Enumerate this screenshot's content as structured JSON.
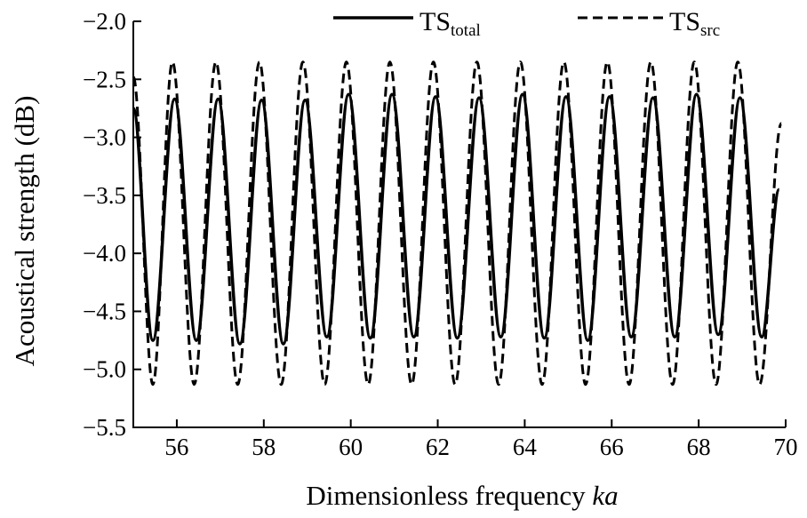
{
  "chart_data": {
    "type": "line",
    "xlabel": "Dimensionless frequency",
    "xlabel_italic": "ka",
    "ylabel": "Acoustical strength (dB)",
    "xlim": [
      55,
      70
    ],
    "ylim": [
      -5.5,
      -2.0
    ],
    "xticks": [
      56,
      58,
      60,
      62,
      64,
      66,
      68,
      70
    ],
    "xtick_labels": [
      "56",
      "58",
      "60",
      "62",
      "64",
      "66",
      "68",
      "70"
    ],
    "yticks": [
      -2.0,
      -2.5,
      -3.0,
      -3.5,
      -4.0,
      -4.5,
      -5.0,
      -5.5
    ],
    "ytick_labels": [
      "−2.0",
      "−2.5",
      "−3.0",
      "−3.5",
      "−4.0",
      "−4.5",
      "−5.0",
      "−5.5"
    ],
    "grid": false,
    "legend_position": "top-right",
    "series": [
      {
        "name_main": "TS",
        "name_sub": "total",
        "style": "solid",
        "color": "#000000",
        "x": [
          55.0,
          55.45,
          55.95,
          56.45,
          56.95,
          57.45,
          57.95,
          58.45,
          58.95,
          59.45,
          59.95,
          60.45,
          60.95,
          61.45,
          61.95,
          62.45,
          62.95,
          63.45,
          63.95,
          64.45,
          64.95,
          65.45,
          65.95,
          66.45,
          66.95,
          67.45,
          67.95,
          68.45,
          68.95,
          69.45,
          69.85
        ],
        "y": [
          -2.75,
          -4.75,
          -2.67,
          -4.75,
          -2.67,
          -4.78,
          -2.68,
          -4.78,
          -2.68,
          -4.72,
          -2.63,
          -4.73,
          -2.63,
          -4.72,
          -2.65,
          -4.73,
          -2.66,
          -4.72,
          -2.63,
          -4.73,
          -2.65,
          -4.75,
          -2.65,
          -4.72,
          -2.66,
          -4.72,
          -2.63,
          -4.7,
          -2.66,
          -4.72,
          -3.45
        ]
      },
      {
        "name_main": "TS",
        "name_sub": "src",
        "style": "dashed",
        "color": "#000000",
        "x": [
          55.0,
          55.45,
          55.9,
          56.4,
          56.9,
          57.4,
          57.9,
          58.4,
          58.9,
          59.4,
          59.9,
          60.4,
          60.9,
          61.4,
          61.9,
          62.4,
          62.9,
          63.4,
          63.9,
          64.4,
          64.9,
          65.4,
          65.9,
          66.4,
          66.9,
          67.4,
          67.9,
          68.4,
          68.9,
          69.4,
          69.9
        ],
        "y": [
          -2.48,
          -5.13,
          -2.35,
          -5.13,
          -2.35,
          -5.13,
          -2.35,
          -5.13,
          -2.35,
          -5.13,
          -2.35,
          -5.13,
          -2.35,
          -5.13,
          -2.35,
          -5.13,
          -2.35,
          -5.13,
          -2.35,
          -5.13,
          -2.35,
          -5.13,
          -2.35,
          -5.13,
          -2.35,
          -5.13,
          -2.35,
          -5.13,
          -2.35,
          -5.13,
          -2.88
        ]
      }
    ]
  }
}
